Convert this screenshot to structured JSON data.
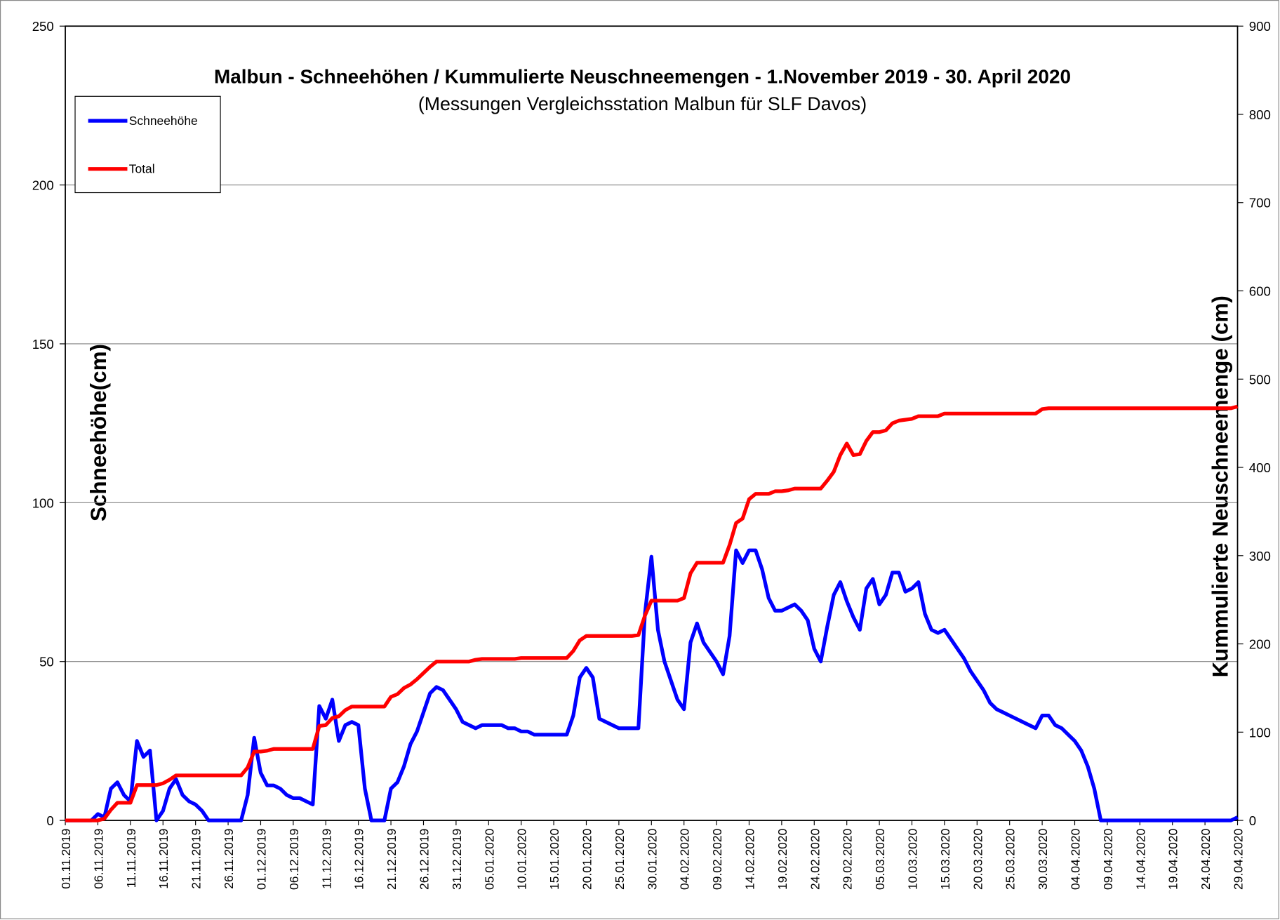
{
  "chart_data": {
    "type": "line",
    "title": "Malbun - Schneehöhen / Kummulierte Neuschneemengen - 1.November 2019 - 30. April 2020",
    "subtitle": "(Messungen Vergleichsstation Malbun für SLF Davos)",
    "y_label": "Schneehöhe(cm)",
    "y2_label": "Kummulierte Neuschneemenge (cm)",
    "categories": [
      "01.11.2019",
      null,
      null,
      null,
      null,
      "06.11.2019",
      null,
      null,
      null,
      null,
      "11.11.2019",
      null,
      null,
      null,
      null,
      "16.11.2019",
      null,
      null,
      null,
      null,
      "21.11.2019",
      null,
      null,
      null,
      null,
      "26.11.2019",
      null,
      null,
      null,
      null,
      "01.12.2019",
      null,
      null,
      null,
      null,
      "06.12.2019",
      null,
      null,
      null,
      null,
      "11.12.2019",
      null,
      null,
      null,
      null,
      "16.12.2019",
      null,
      null,
      null,
      null,
      "21.12.2019",
      null,
      null,
      null,
      null,
      "26.12.2019",
      null,
      null,
      null,
      null,
      "31.12.2019",
      null,
      null,
      null,
      null,
      "05.01.2020",
      null,
      null,
      null,
      null,
      "10.01.2020",
      null,
      null,
      null,
      null,
      "15.01.2020",
      null,
      null,
      null,
      null,
      "20.01.2020",
      null,
      null,
      null,
      null,
      "25.01.2020",
      null,
      null,
      null,
      null,
      "30.01.2020",
      null,
      null,
      null,
      null,
      "04.02.2020",
      null,
      null,
      null,
      null,
      "09.02.2020",
      null,
      null,
      null,
      null,
      "14.02.2020",
      null,
      null,
      null,
      null,
      "19.02.2020",
      null,
      null,
      null,
      null,
      "24.02.2020",
      null,
      null,
      null,
      null,
      "29.02.2020",
      null,
      null,
      null,
      null,
      "05.03.2020",
      null,
      null,
      null,
      null,
      "10.03.2020",
      null,
      null,
      null,
      null,
      "15.03.2020",
      null,
      null,
      null,
      null,
      "20.03.2020",
      null,
      null,
      null,
      null,
      "25.03.2020",
      null,
      null,
      null,
      null,
      "30.03.2020",
      null,
      null,
      null,
      null,
      "04.04.2020",
      null,
      null,
      null,
      null,
      "09.04.2020",
      null,
      null,
      null,
      null,
      "14.04.2020",
      null,
      null,
      null,
      null,
      "19.04.2020",
      null,
      null,
      null,
      null,
      "24.04.2020",
      null,
      null,
      null,
      null,
      "29.04.2020"
    ],
    "series": [
      {
        "name": "Schneehöhe",
        "color": "#0000ff",
        "axis": "y",
        "values": [
          0,
          0,
          0,
          0,
          0,
          2,
          1,
          10,
          12,
          8,
          6,
          25,
          20,
          22,
          0,
          3,
          10,
          13,
          8,
          6,
          5,
          3,
          0,
          0,
          0,
          0,
          0,
          0,
          8,
          26,
          15,
          11,
          11,
          10,
          8,
          7,
          7,
          6,
          5,
          36,
          32,
          38,
          25,
          30,
          31,
          30,
          10,
          0,
          0,
          0,
          10,
          12,
          17,
          24,
          28,
          34,
          40,
          42,
          41,
          38,
          35,
          31,
          30,
          29,
          30,
          30,
          30,
          30,
          29,
          29,
          28,
          28,
          27,
          27,
          27,
          27,
          27,
          27,
          33,
          45,
          48,
          45,
          32,
          31,
          30,
          29,
          29,
          29,
          29,
          65,
          83,
          60,
          50,
          44,
          38,
          35,
          56,
          62,
          56,
          53,
          50,
          46,
          58,
          85,
          81,
          85,
          85,
          79,
          70,
          66,
          66,
          67,
          68,
          66,
          63,
          54,
          50,
          61,
          71,
          75,
          69,
          64,
          60,
          73,
          76,
          68,
          71,
          78,
          78,
          72,
          73,
          75,
          65,
          60,
          59,
          60,
          57,
          54,
          51,
          47,
          44,
          41,
          37,
          35,
          34,
          33,
          32,
          31,
          30,
          29,
          33,
          33,
          30,
          29,
          27,
          25,
          22,
          17,
          10,
          0,
          0,
          0,
          0,
          0,
          0,
          0,
          0,
          0,
          0,
          0,
          0,
          0,
          0,
          0,
          0,
          0,
          0,
          0,
          0,
          0,
          1
        ]
      },
      {
        "name": "Total",
        "color": "#ff0000",
        "axis": "y2",
        "values": [
          0,
          0,
          0,
          0,
          0,
          0,
          2,
          12,
          20,
          20,
          20,
          40,
          40,
          40,
          40,
          42,
          46,
          51,
          51,
          51,
          51,
          51,
          51,
          51,
          51,
          51,
          51,
          51,
          60,
          78,
          78,
          79,
          81,
          81,
          81,
          81,
          81,
          81,
          81,
          107,
          108,
          116,
          118,
          125,
          129,
          129,
          129,
          129,
          129,
          129,
          140,
          143,
          150,
          154,
          160,
          167,
          174,
          180,
          180,
          180,
          180,
          180,
          180,
          182,
          183,
          183,
          183,
          183,
          183,
          183,
          184,
          184,
          184,
          184,
          184,
          184,
          184,
          184,
          192,
          204,
          209,
          209,
          209,
          209,
          209,
          209,
          209,
          209,
          210,
          232,
          249,
          249,
          249,
          249,
          249,
          252,
          280,
          292,
          292,
          292,
          292,
          292,
          312,
          337,
          342,
          364,
          370,
          370,
          370,
          373,
          373,
          374,
          376,
          376,
          376,
          376,
          376,
          385,
          395,
          414,
          427,
          414,
          415,
          430,
          440,
          440,
          442,
          450,
          453,
          454,
          455,
          458,
          458,
          458,
          458,
          461,
          461,
          461,
          461,
          461,
          461,
          461,
          461,
          461,
          461,
          461,
          461,
          461,
          461,
          461,
          466,
          467,
          467,
          467,
          467,
          467,
          467,
          467,
          467,
          467,
          467,
          467,
          467,
          467,
          467,
          467,
          467,
          467,
          467,
          467,
          467,
          467,
          467,
          467,
          467,
          467,
          467,
          467,
          467,
          467,
          469
        ]
      }
    ],
    "ylim": [
      0,
      250
    ],
    "yticks": [
      0,
      50,
      100,
      150,
      200,
      250
    ],
    "y2lim": [
      0,
      900
    ],
    "y2ticks": [
      0,
      100,
      200,
      300,
      400,
      500,
      600,
      700,
      800,
      900
    ],
    "grid": true,
    "legend": "upper left"
  }
}
